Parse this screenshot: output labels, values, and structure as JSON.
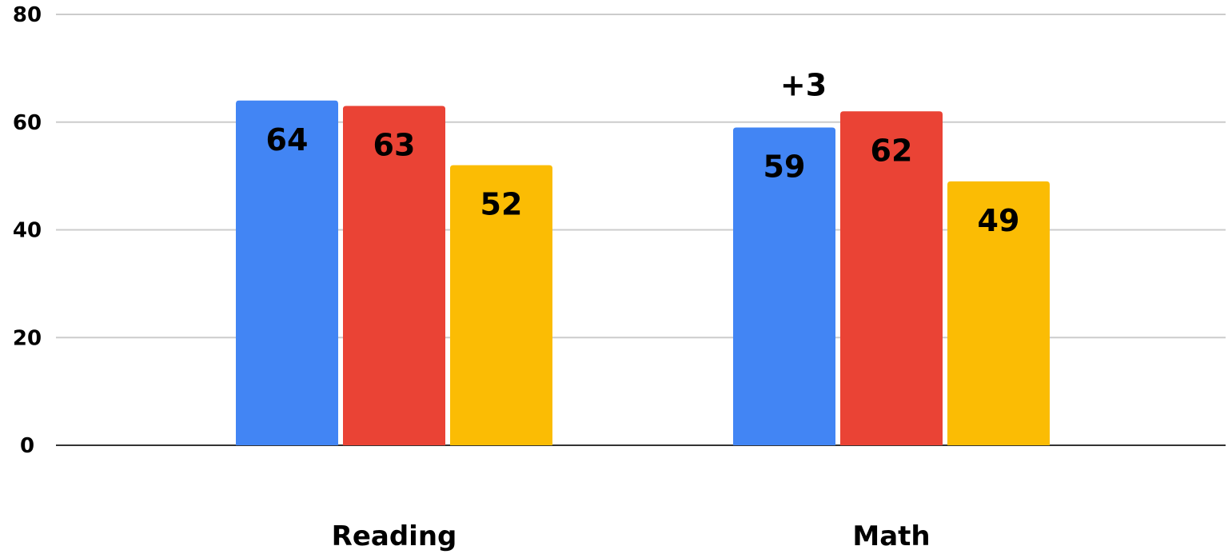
{
  "chart_data": {
    "type": "bar",
    "title": "",
    "xlabel": "",
    "ylabel": "",
    "categories": [
      "Reading",
      "Math"
    ],
    "series": [
      {
        "color": "#4285F4",
        "values": [
          64,
          59
        ]
      },
      {
        "color": "#EA4335",
        "values": [
          63,
          62
        ]
      },
      {
        "color": "#FBBC04",
        "values": [
          52,
          49
        ]
      }
    ],
    "ylim": [
      0,
      80
    ],
    "yticks": [
      0,
      20,
      40,
      60,
      80
    ],
    "grid": true,
    "legend": "none",
    "annotations": [
      {
        "text": "+3",
        "category": "Math",
        "series": 0
      }
    ],
    "colors": {
      "gridline": "#cccccc",
      "baseline": "#333333",
      "text": "#000000"
    }
  }
}
